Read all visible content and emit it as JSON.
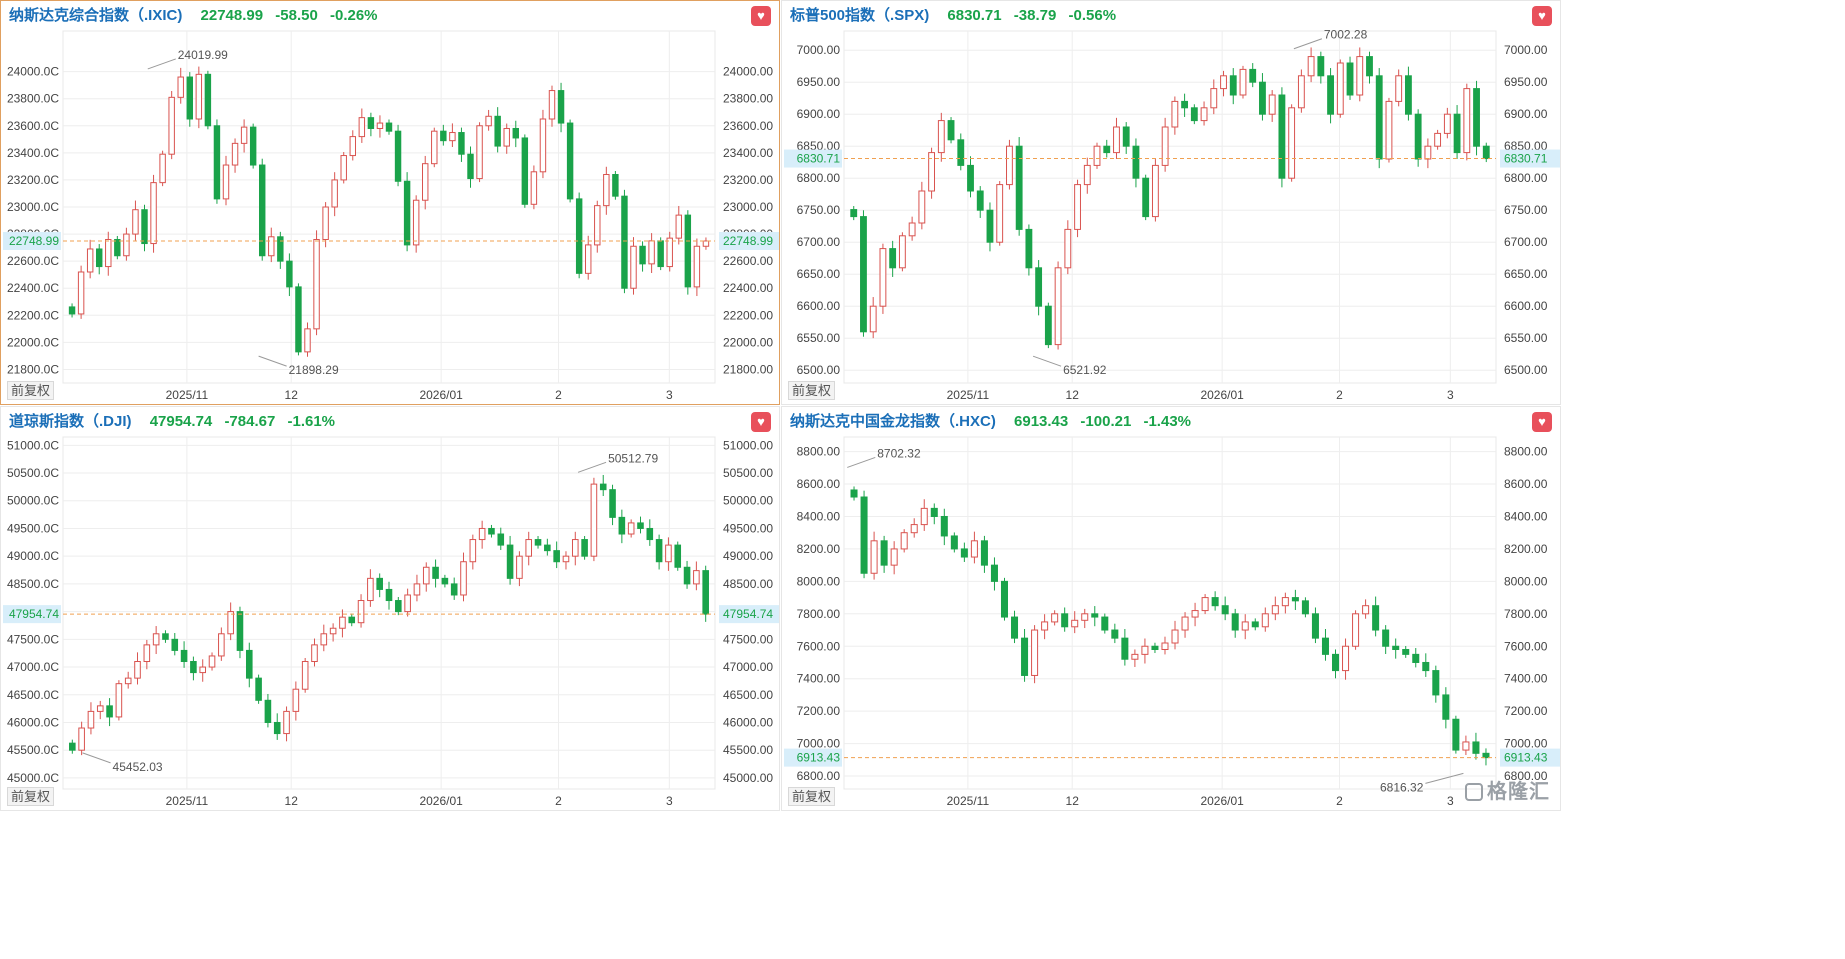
{
  "colors": {
    "up": "#d9534f",
    "down": "#1aa34a",
    "price_line": "#f0a050",
    "header_name": "#1b6fb8",
    "grid": "#eeeeee",
    "axis_text": "#444444"
  },
  "common": {
    "adjust_label": "前复权",
    "heart_icon": "heart-icon",
    "watermark": "格隆汇"
  },
  "chart_data": [
    {
      "type": "candlestick",
      "id": "ixic",
      "title": "纳斯达克综合指数（.IXIC)",
      "last_price": "22748.99",
      "change": "-58.50",
      "change_pct": "-0.26%",
      "ylim": [
        21700,
        24300
      ],
      "yticks": [
        21800,
        22000,
        22200,
        22400,
        22600,
        22800,
        23000,
        23200,
        23400,
        23600,
        23800,
        24000
      ],
      "ytick_labels": [
        "21800.0C",
        "22000.0C",
        "22200.0C",
        "22400.0C",
        "22600.0C",
        "22800.0C",
        "23000.0C",
        "23200.0C",
        "23400.0C",
        "23600.0C",
        "23800.0C",
        "24000.0C"
      ],
      "ytick_labels_right": [
        "21800.00",
        "22000.00",
        "22200.00",
        "22400.00",
        "22600.00",
        "22800.00",
        "23000.00",
        "23200.00",
        "23400.00",
        "23600.00",
        "23800.00",
        "24000.00"
      ],
      "xticks": [
        {
          "label": "2025/11",
          "frac": 0.19
        },
        {
          "label": "12",
          "frac": 0.35
        },
        {
          "label": "2026/01",
          "frac": 0.58
        },
        {
          "label": "2",
          "frac": 0.76
        },
        {
          "label": "3",
          "frac": 0.93
        }
      ],
      "high_label": "24019.99",
      "high_value": 24019.99,
      "high_frac": 0.13,
      "low_label": "21898.29",
      "low_value": 21898.29,
      "low_frac": 0.3,
      "closes": [
        22210,
        22520,
        22690,
        22560,
        22760,
        22640,
        22800,
        22980,
        22730,
        23180,
        23390,
        23810,
        23960,
        23650,
        23980,
        23600,
        23060,
        23310,
        23470,
        23590,
        23310,
        22640,
        22780,
        22600,
        22410,
        21930,
        22100,
        22760,
        23000,
        23200,
        23380,
        23520,
        23660,
        23580,
        23620,
        23560,
        23190,
        22720,
        23050,
        23320,
        23560,
        23490,
        23550,
        23390,
        23210,
        23600,
        23670,
        23450,
        23580,
        23510,
        23020,
        23260,
        23650,
        23860,
        23620,
        23060,
        22510,
        22720,
        23010,
        23240,
        23080,
        22400,
        22710,
        22580,
        22750,
        22560,
        22770,
        22940,
        22410,
        22710,
        22748.99
      ]
    },
    {
      "type": "candlestick",
      "id": "spx",
      "title": "标普500指数（.SPX)",
      "last_price": "6830.71",
      "change": "-38.79",
      "change_pct": "-0.56%",
      "ylim": [
        6480,
        7030
      ],
      "yticks": [
        6500,
        6550,
        6600,
        6650,
        6700,
        6750,
        6800,
        6850,
        6900,
        6950,
        7000
      ],
      "ytick_labels": [
        "6500.00",
        "6550.00",
        "6600.00",
        "6650.00",
        "6700.00",
        "6750.00",
        "6800.00",
        "6850.00",
        "6900.00",
        "6950.00",
        "7000.00"
      ],
      "ytick_labels_right": [
        "6500.00",
        "6550.00",
        "6600.00",
        "6650.00",
        "6700.00",
        "6750.00",
        "6800.00",
        "6850.00",
        "6900.00",
        "6950.00",
        "7000.00"
      ],
      "xticks": [
        {
          "label": "2025/11",
          "frac": 0.19
        },
        {
          "label": "12",
          "frac": 0.35
        },
        {
          "label": "2026/01",
          "frac": 0.58
        },
        {
          "label": "2",
          "frac": 0.76
        },
        {
          "label": "3",
          "frac": 0.93
        }
      ],
      "high_label": "7002.28",
      "high_value": 7002.28,
      "high_frac": 0.69,
      "low_label": "6521.92",
      "low_value": 6521.92,
      "low_frac": 0.29,
      "closes": [
        6740,
        6560,
        6600,
        6690,
        6660,
        6710,
        6730,
        6780,
        6840,
        6890,
        6860,
        6820,
        6780,
        6750,
        6700,
        6790,
        6850,
        6720,
        6660,
        6600,
        6540,
        6660,
        6720,
        6790,
        6820,
        6850,
        6840,
        6880,
        6850,
        6800,
        6740,
        6820,
        6880,
        6920,
        6910,
        6890,
        6910,
        6940,
        6960,
        6930,
        6970,
        6950,
        6900,
        6930,
        6800,
        6910,
        6960,
        6990,
        6960,
        6900,
        6980,
        6930,
        6990,
        6960,
        6830,
        6920,
        6960,
        6900,
        6830,
        6850,
        6870,
        6900,
        6840,
        6940,
        6850,
        6830.71
      ]
    },
    {
      "type": "candlestick",
      "id": "dji",
      "title": "道琼斯指数（.DJI)",
      "last_price": "47954.74",
      "change": "-784.67",
      "change_pct": "-1.61%",
      "ylim": [
        44800,
        51150
      ],
      "yticks": [
        45000,
        45500,
        46000,
        46500,
        47000,
        47500,
        48000,
        48500,
        49000,
        49500,
        50000,
        50500,
        51000
      ],
      "ytick_labels": [
        "45000.0C",
        "45500.0C",
        "46000.0C",
        "46500.0C",
        "47000.0C",
        "47500.0C",
        "48000.0C",
        "48500.0C",
        "49000.0C",
        "49500.0C",
        "50000.0C",
        "50500.0C",
        "51000.0C"
      ],
      "ytick_labels_right": [
        "45000.00",
        "45500.00",
        "46000.00",
        "46500.00",
        "47000.00",
        "47500.00",
        "48000.00",
        "48500.00",
        "49000.00",
        "49500.00",
        "50000.00",
        "50500.00",
        "51000.00"
      ],
      "xticks": [
        {
          "label": "2025/11",
          "frac": 0.19
        },
        {
          "label": "12",
          "frac": 0.35
        },
        {
          "label": "2026/01",
          "frac": 0.58
        },
        {
          "label": "2",
          "frac": 0.76
        },
        {
          "label": "3",
          "frac": 0.93
        }
      ],
      "high_label": "50512.79",
      "high_value": 50512.79,
      "high_frac": 0.79,
      "low_label": "45452.03",
      "low_value": 45452.03,
      "low_frac": 0.03,
      "closes": [
        45500,
        45900,
        46200,
        46300,
        46100,
        46700,
        46800,
        47100,
        47400,
        47600,
        47500,
        47300,
        47100,
        46900,
        47000,
        47200,
        47600,
        48000,
        47300,
        46800,
        46400,
        46000,
        45800,
        46200,
        46600,
        47100,
        47400,
        47600,
        47700,
        47900,
        47800,
        48200,
        48600,
        48400,
        48200,
        48000,
        48300,
        48500,
        48800,
        48600,
        48500,
        48300,
        48900,
        49300,
        49500,
        49400,
        49200,
        48600,
        49000,
        49300,
        49200,
        49100,
        48900,
        49000,
        49300,
        49000,
        50300,
        50200,
        49700,
        49400,
        49600,
        49500,
        49300,
        48900,
        49200,
        48800,
        48500,
        48739.41,
        47954.74
      ]
    },
    {
      "type": "candlestick",
      "id": "hxc",
      "title": "纳斯达克中国金龙指数（.HXC)",
      "last_price": "6913.43",
      "change": "-100.21",
      "change_pct": "-1.43%",
      "ylim": [
        6720,
        8890
      ],
      "yticks": [
        6800,
        7000,
        7200,
        7400,
        7600,
        7800,
        8000,
        8200,
        8400,
        8600,
        8800
      ],
      "ytick_labels": [
        "6800.00",
        "7000.00",
        "7200.00",
        "7400.00",
        "7600.00",
        "7800.00",
        "8000.00",
        "8200.00",
        "8400.00",
        "8600.00",
        "8800.00"
      ],
      "ytick_labels_right": [
        "6800.00",
        "7000.00",
        "7200.00",
        "7400.00",
        "7600.00",
        "7800.00",
        "8000.00",
        "8200.00",
        "8400.00",
        "8600.00",
        "8800.00"
      ],
      "xticks": [
        {
          "label": "2025/11",
          "frac": 0.19
        },
        {
          "label": "12",
          "frac": 0.35
        },
        {
          "label": "2026/01",
          "frac": 0.58
        },
        {
          "label": "2",
          "frac": 0.76
        },
        {
          "label": "3",
          "frac": 0.93
        }
      ],
      "high_label": "8702.32",
      "high_value": 8702.32,
      "high_frac": 0.005,
      "low_label": "6816.32",
      "low_value": 6816.32,
      "low_frac": 0.95,
      "closes": [
        8520,
        8050,
        8250,
        8100,
        8200,
        8300,
        8350,
        8450,
        8400,
        8280,
        8200,
        8150,
        8250,
        8100,
        8000,
        7780,
        7650,
        7420,
        7700,
        7750,
        7800,
        7720,
        7760,
        7800,
        7780,
        7700,
        7650,
        7520,
        7550,
        7600,
        7580,
        7620,
        7700,
        7780,
        7820,
        7900,
        7850,
        7800,
        7700,
        7750,
        7720,
        7800,
        7850,
        7900,
        7880,
        7800,
        7650,
        7550,
        7450,
        7600,
        7800,
        7850,
        7700,
        7600,
        7580,
        7550,
        7500,
        7450,
        7300,
        7150,
        6960,
        7010,
        6940,
        6913.43
      ]
    }
  ]
}
